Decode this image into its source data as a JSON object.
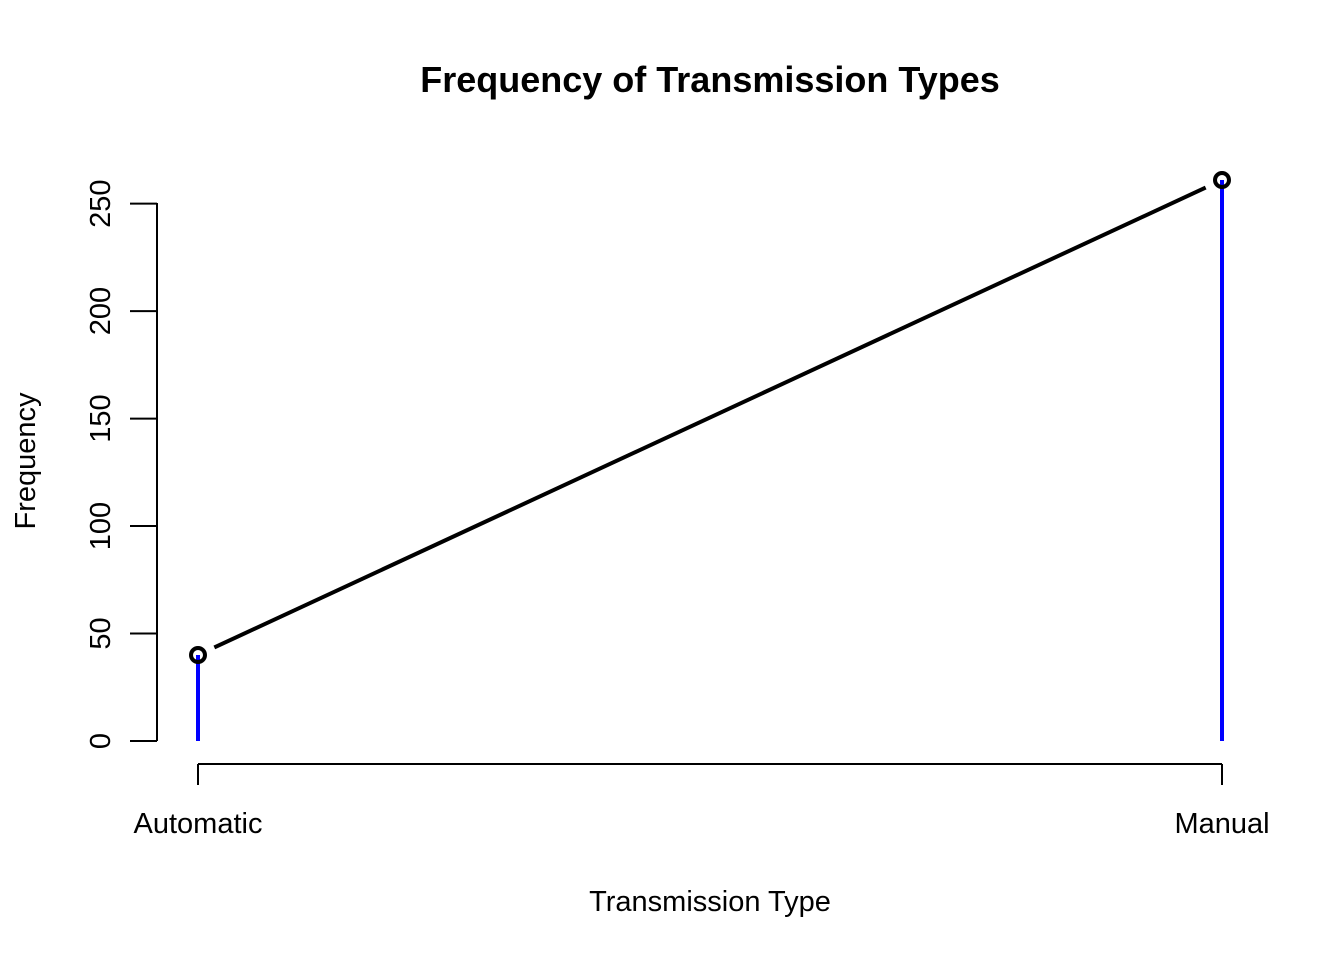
{
  "chart_data": {
    "type": "line",
    "title": "Frequency of Transmission Types",
    "xlabel": "Transmission Type",
    "ylabel": "Frequency",
    "categories": [
      "Automatic",
      "Manual"
    ],
    "values": [
      40,
      261
    ],
    "ylim": [
      0,
      261
    ],
    "yticks": [
      0,
      50,
      100,
      150,
      200,
      250
    ],
    "grid": false,
    "colors": {
      "line": "#000000",
      "spikes": "#0000ff",
      "points": "#000000"
    }
  }
}
